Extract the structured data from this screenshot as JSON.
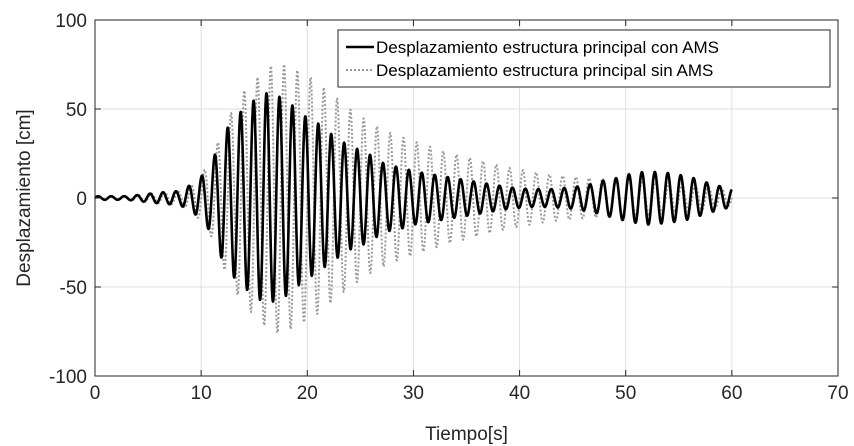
{
  "chart_data": {
    "type": "line",
    "title": "",
    "xlabel": "Tiempo[s]",
    "ylabel": "Desplazamiento [cm]",
    "xlim": [
      0,
      70
    ],
    "ylim": [
      -100,
      100
    ],
    "x_ticks": [
      0,
      10,
      20,
      30,
      40,
      50,
      60,
      70
    ],
    "x_tick_labels": [
      "0",
      "10",
      "20",
      "30",
      "40",
      "50",
      "60",
      "70"
    ],
    "y_ticks": [
      -100,
      -50,
      0,
      50,
      100
    ],
    "y_tick_labels": [
      "-100",
      "-50",
      "0",
      "50",
      "100"
    ],
    "grid": true,
    "legend_position": "top-right",
    "sample_rate_hz": 40,
    "series": [
      {
        "name": "Desplazamiento estructura principal con AMS",
        "color": "#000000",
        "style": "solid",
        "frequency_hz": 0.82,
        "envelope": {
          "t": [
            0,
            3,
            6,
            8,
            9.2,
            10,
            11,
            12,
            13,
            14,
            15,
            16,
            17,
            18,
            19,
            20,
            21,
            22,
            23,
            24,
            25,
            26,
            27,
            28,
            29,
            30,
            31,
            33,
            35,
            37,
            39,
            41,
            43,
            45,
            46,
            47,
            48,
            49,
            50,
            51,
            52,
            54,
            56,
            58,
            60
          ],
          "amp": [
            1,
            1,
            3,
            4,
            8,
            12,
            20,
            35,
            44,
            50,
            55,
            59,
            58,
            55,
            50,
            45,
            42,
            37,
            33,
            29,
            27,
            24,
            20,
            18,
            17,
            15,
            14,
            12,
            10,
            8,
            6,
            5,
            5,
            6,
            7,
            8,
            10,
            11,
            13,
            14,
            15,
            14,
            12,
            8,
            5
          ]
        }
      },
      {
        "name": "Desplazamiento estructura principal sin AMS",
        "color": "#999999",
        "style": "dotted",
        "frequency_hz": 0.8,
        "envelope": {
          "t": [
            0,
            3,
            6,
            8,
            9.2,
            10,
            11,
            12,
            13,
            14,
            15,
            16,
            17,
            18,
            19,
            20,
            21,
            22,
            23,
            24,
            25,
            26,
            27,
            28,
            29,
            30,
            31,
            33,
            35,
            37,
            39,
            41,
            43,
            45,
            47,
            49,
            51,
            53,
            55,
            57,
            59,
            60
          ],
          "amp": [
            1,
            1,
            3,
            4,
            8,
            13,
            22,
            38,
            50,
            60,
            66,
            72,
            76,
            75,
            72,
            69,
            65,
            60,
            55,
            50,
            46,
            42,
            39,
            36,
            34,
            32,
            30,
            26,
            23,
            20,
            17,
            15,
            13,
            12,
            11,
            11,
            10,
            9,
            8,
            7,
            5,
            4
          ]
        }
      }
    ]
  }
}
